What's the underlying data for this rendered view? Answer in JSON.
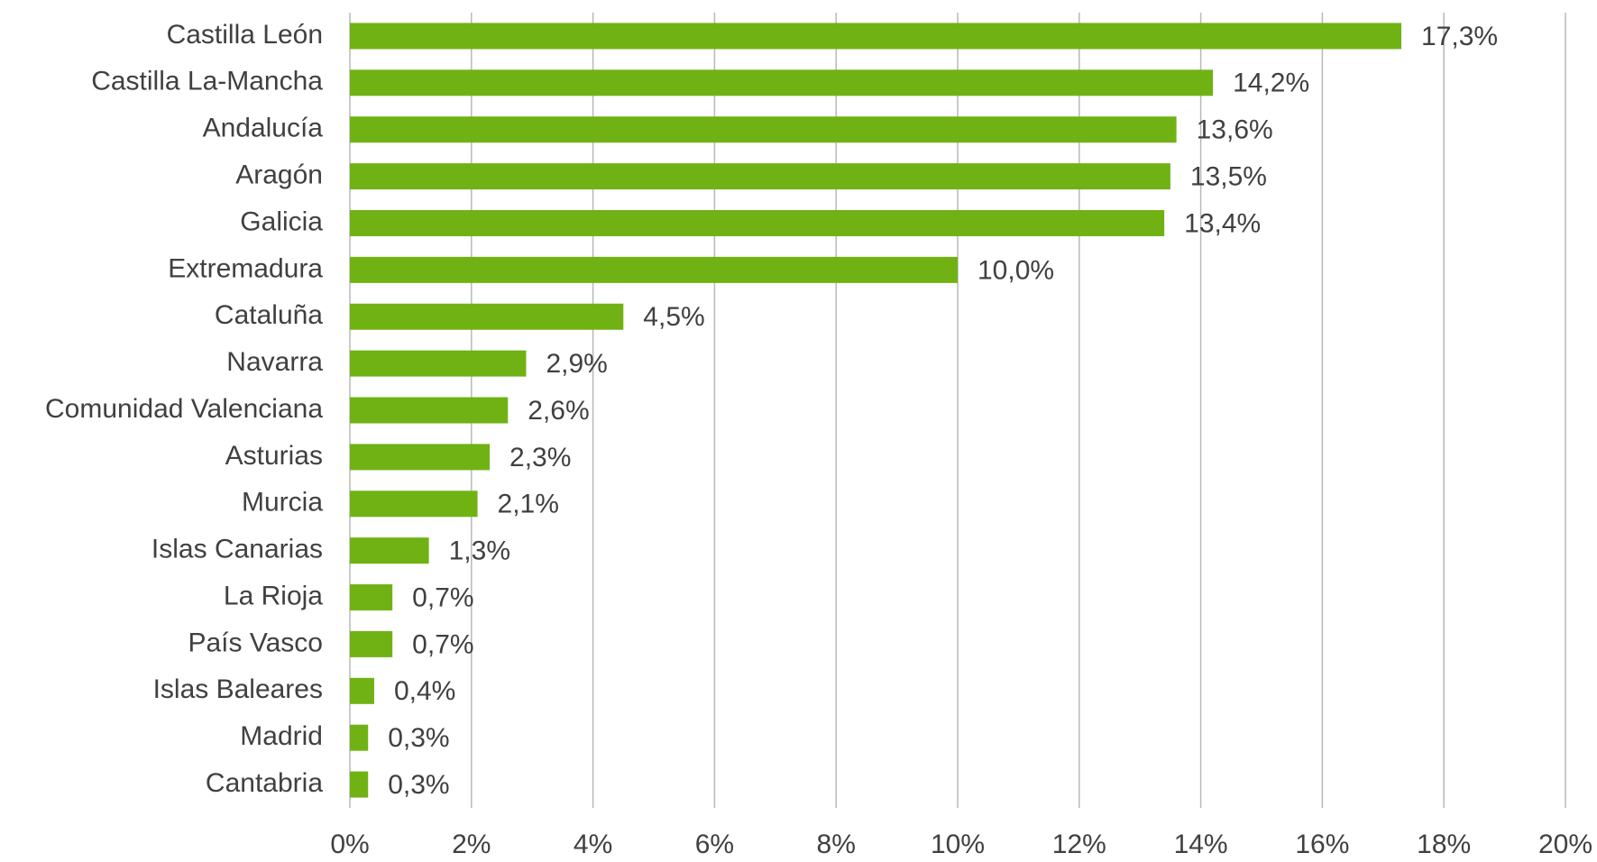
{
  "chart_data": {
    "type": "barh",
    "categories": [
      "Castilla León",
      "Castilla La-Mancha",
      "Andalucía",
      "Aragón",
      "Galicia",
      "Extremadura",
      "Cataluña",
      "Navarra",
      "Comunidad Valenciana",
      "Asturias",
      "Murcia",
      "Islas Canarias",
      "La Rioja",
      "País Vasco",
      "Islas Baleares",
      "Madrid",
      "Cantabria"
    ],
    "values": [
      17.3,
      14.2,
      13.6,
      13.5,
      13.4,
      10.0,
      4.5,
      2.9,
      2.6,
      2.3,
      2.1,
      1.3,
      0.7,
      0.7,
      0.4,
      0.3,
      0.3
    ],
    "value_labels": [
      "17,3%",
      "14,2%",
      "13,6%",
      "13,5%",
      "13,4%",
      "10,0%",
      "4,5%",
      "2,9%",
      "2,6%",
      "2,3%",
      "2,1%",
      "1,3%",
      "0,7%",
      "0,7%",
      "0,4%",
      "0,3%",
      "0,3%"
    ],
    "color": "#70b214",
    "xlim": [
      0,
      20
    ],
    "xticks": [
      {
        "value": 0,
        "label": "0%"
      },
      {
        "value": 2,
        "label": "2%"
      },
      {
        "value": 4,
        "label": "4%"
      },
      {
        "value": 6,
        "label": "6%"
      },
      {
        "value": 8,
        "label": "8%"
      },
      {
        "value": 10,
        "label": "10%"
      },
      {
        "value": 12,
        "label": "12%"
      },
      {
        "value": 14,
        "label": "14%"
      },
      {
        "value": 16,
        "label": "16%"
      },
      {
        "value": 18,
        "label": "18%"
      },
      {
        "value": 20,
        "label": "20%"
      }
    ],
    "grid": true
  }
}
